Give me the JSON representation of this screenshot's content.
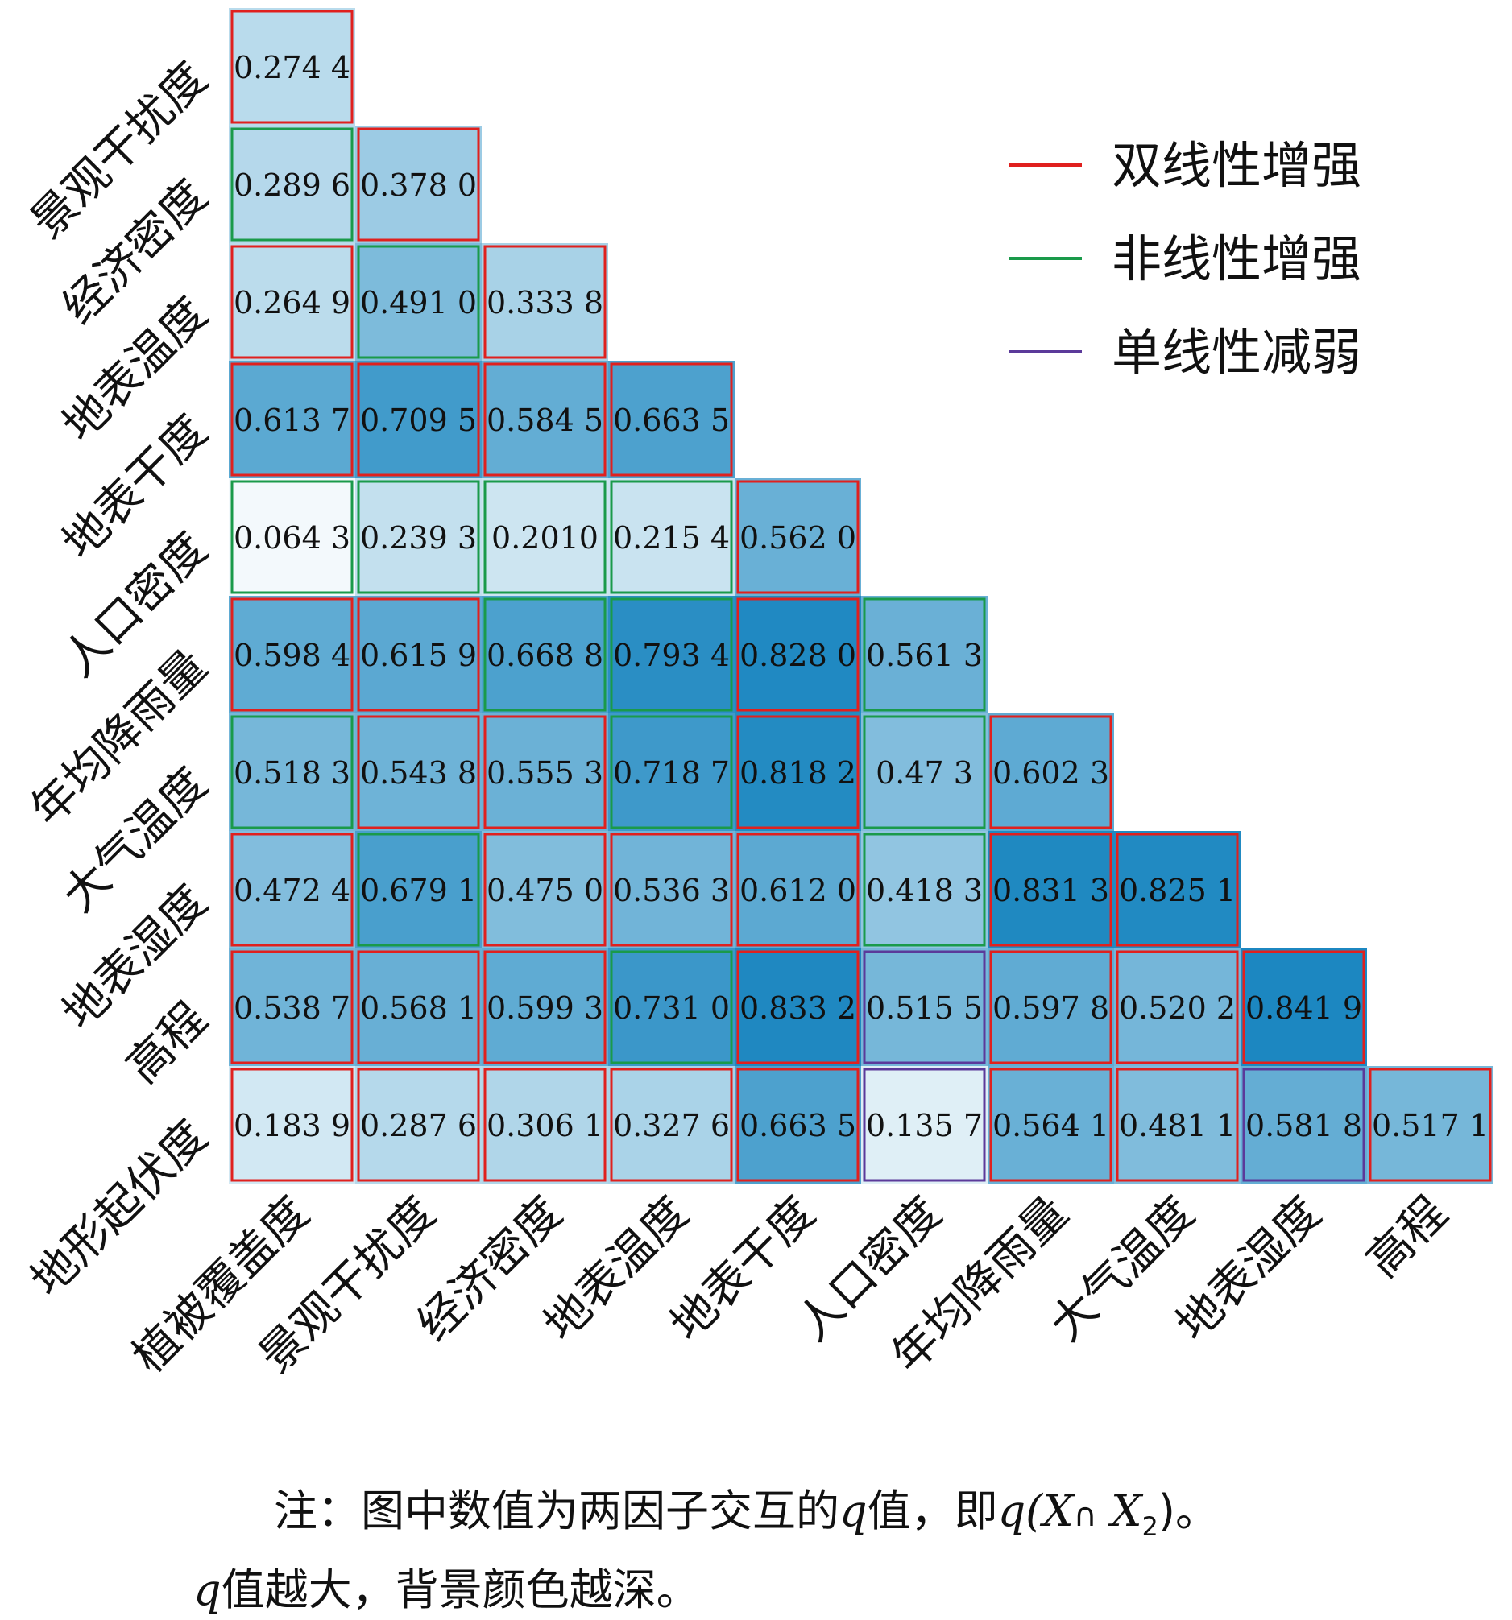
{
  "chart_data": {
    "type": "heatmap",
    "title": "",
    "row_labels": [
      "景观干扰度",
      "经济密度",
      "地表温度",
      "地表干度",
      "人口密度",
      "年均降雨量",
      "大气温度",
      "地表湿度",
      "高程",
      "地形起伏度"
    ],
    "col_labels": [
      "植被覆盖度",
      "景观干扰度",
      "经济密度",
      "地表温度",
      "地表干度",
      "人口密度",
      "年均降雨量",
      "大气温度",
      "地表湿度",
      "高程"
    ],
    "cells": [
      [
        "0.274 4"
      ],
      [
        "0.289 6",
        "0.378 0"
      ],
      [
        "0.264 9",
        "0.491 0",
        "0.333 8"
      ],
      [
        "0.613 7",
        "0.709 5",
        "0.584 5",
        "0.663 5"
      ],
      [
        "0.064 3",
        "0.239 3",
        "0.2010",
        "0.215 4",
        "0.562 0"
      ],
      [
        "0.598 4",
        "0.615 9",
        "0.668 8",
        "0.793 4",
        "0.828 0",
        "0.561 3"
      ],
      [
        "0.518 3",
        "0.543 8",
        "0.555 3",
        "0.718 7",
        "0.818 2",
        "0.47 3",
        "0.602 3"
      ],
      [
        "0.472 4",
        "0.679 1",
        "0.475 0",
        "0.536 3",
        "0.612 0",
        "0.418 3",
        "0.831 3",
        "0.825 1"
      ],
      [
        "0.538 7",
        "0.568 1",
        "0.599 3",
        "0.731 0",
        "0.833 2",
        "0.515 5",
        "0.597 8",
        "0.520 2",
        "0.841 9"
      ],
      [
        "0.183 9",
        "0.287 6",
        "0.306 1",
        "0.327 6",
        "0.663 5",
        "0.135 7",
        "0.564 1",
        "0.481 1",
        "0.581 8",
        "0.517 1"
      ]
    ],
    "types": [
      [
        "r"
      ],
      [
        "g",
        "r"
      ],
      [
        "r",
        "g",
        "r"
      ],
      [
        "r",
        "r",
        "r",
        "r"
      ],
      [
        "g",
        "g",
        "g",
        "g",
        "r"
      ],
      [
        "r",
        "r",
        "g",
        "g",
        "r",
        "g"
      ],
      [
        "g",
        "r",
        "r",
        "g",
        "r",
        "g",
        "r"
      ],
      [
        "r",
        "g",
        "r",
        "r",
        "r",
        "g",
        "r",
        "r"
      ],
      [
        "r",
        "r",
        "r",
        "g",
        "r",
        "p",
        "r",
        "r",
        "r"
      ],
      [
        "r",
        "r",
        "r",
        "r",
        "r",
        "p",
        "r",
        "r",
        "p",
        "r"
      ]
    ],
    "legend": [
      {
        "key": "r",
        "label": "双线性增强",
        "color": "#e0201e"
      },
      {
        "key": "g",
        "label": "非线性增强",
        "color": "#1a9a4a"
      },
      {
        "key": "p",
        "label": "单线性减弱",
        "color": "#5b3a9a"
      }
    ],
    "color_scale": {
      "low": "#f4fafc",
      "high": "#1a86c0"
    }
  },
  "note": {
    "line1_a": "注：图中数值为两因子交互的",
    "line1_q": "q",
    "line1_b": "值，即",
    "line1_expr": "q(X",
    "line1_cap": "∩",
    "line1_x2": " X",
    "line1_sub": "2",
    "line1_end": ")。",
    "line2_q": "q",
    "line2_b": "值越大，背景颜色越深。"
  }
}
